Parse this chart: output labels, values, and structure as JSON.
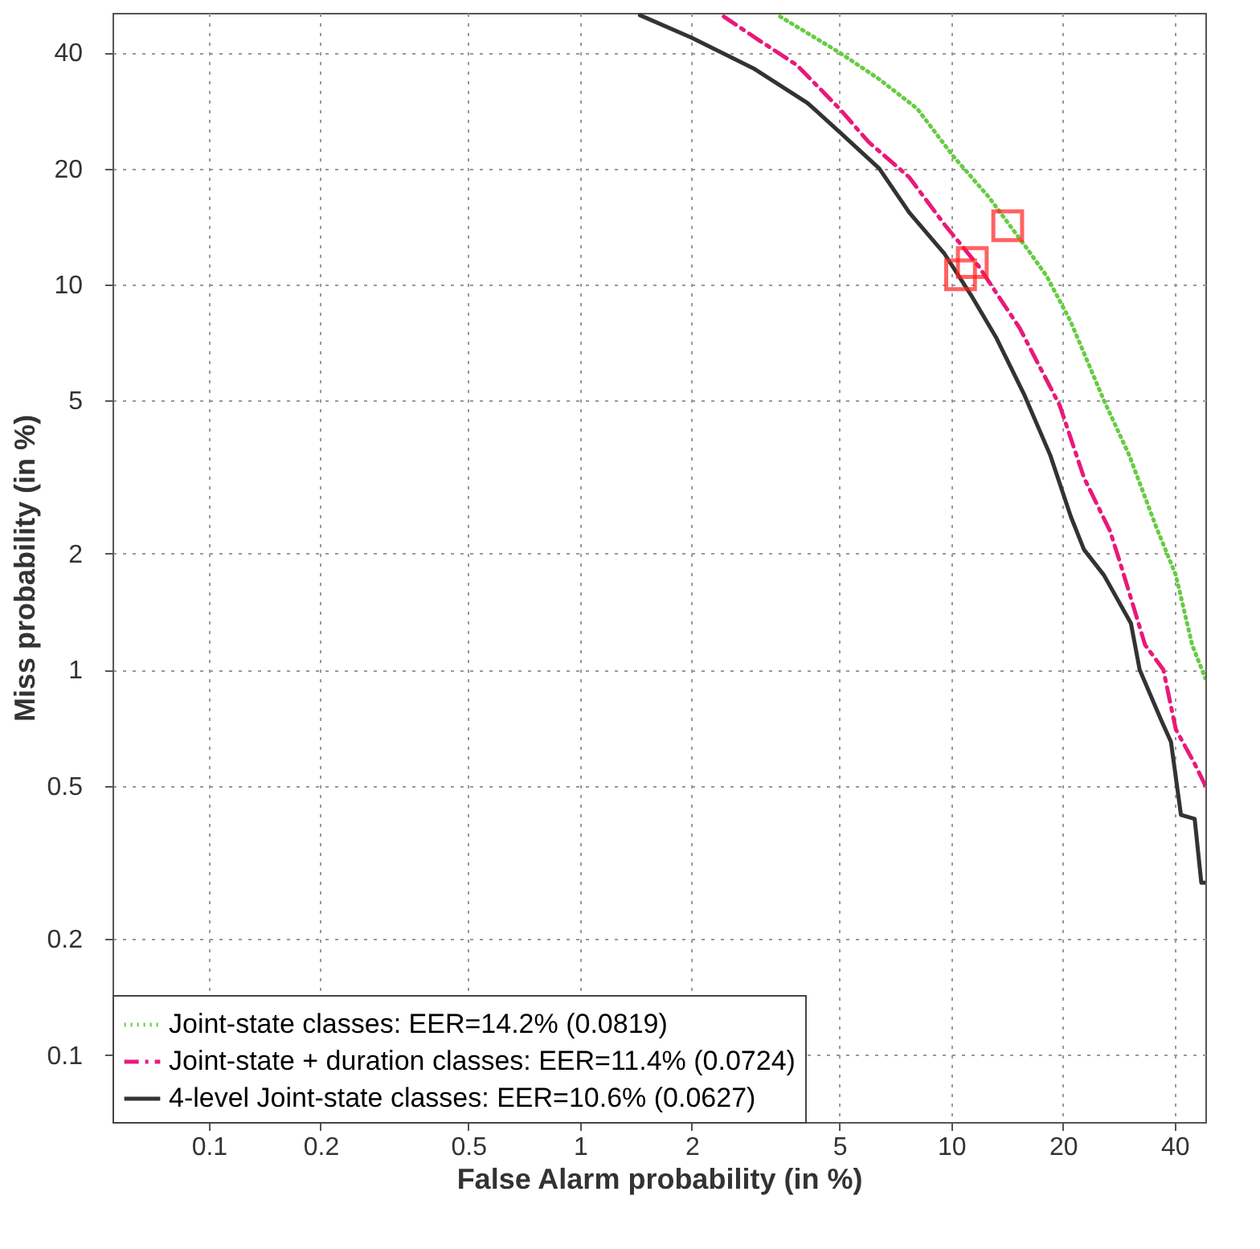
{
  "chart_data": {
    "type": "line",
    "xlabel": "False Alarm probability (in %)",
    "ylabel": "Miss probability (in %)",
    "log": "xy",
    "grid": true,
    "legend": "bottom left",
    "xlim": [
      0.055,
      48.4
    ],
    "ylim": [
      0.067,
      50.7
    ],
    "xticks": [
      0.1,
      0.2,
      0.5,
      1,
      2,
      5,
      10,
      20,
      40
    ],
    "yticks": [
      0.1,
      0.2,
      0.5,
      1,
      2,
      5,
      10,
      20,
      40
    ],
    "series": [
      {
        "name": "Joint-state classes: EER=14.2% (0.0819)",
        "color": "#66cc44",
        "line_style": "dotted",
        "x": [
          3.46,
          5,
          6.4,
          8.1,
          10.1,
          12.6,
          16.1,
          18.1,
          21,
          25.8,
          30.2,
          35.6,
          40.3,
          44.6,
          48.4
        ],
        "values": [
          49.6,
          40,
          34.1,
          28.6,
          21.6,
          16.9,
          12.3,
          10.5,
          8,
          5,
          3.6,
          2.36,
          1.76,
          1.16,
          0.95
        ]
      },
      {
        "name": "Joint-state + duration classes: EER=11.4% (0.0724)",
        "color": "#e8197a",
        "line_style": "dashed",
        "x": [
          2.44,
          3.03,
          3.84,
          5,
          6,
          7.7,
          9.6,
          11.9,
          15.3,
          19.6,
          22.8,
          26.8,
          28.9,
          33.3,
          37.3,
          40.3,
          45.3,
          48.4
        ],
        "values": [
          49.6,
          43.1,
          37.1,
          28.6,
          23.4,
          19,
          14.3,
          11.1,
          7.7,
          4.86,
          3.15,
          2.29,
          1.82,
          1.16,
          1.0,
          0.7,
          0.57,
          0.5
        ]
      },
      {
        "name": "4-level Joint-state classes: EER=10.6% (0.0627)",
        "color": "#333333",
        "line_style": "solid",
        "x": [
          1.45,
          2,
          2.93,
          4.1,
          5,
          6.4,
          7.7,
          9.6,
          11.3,
          13.2,
          15.7,
          18.5,
          21,
          22.8,
          25.8,
          30.5,
          32.2,
          36.8,
          39.1,
          41.6,
          45.3,
          47.2,
          48.4
        ],
        "values": [
          50,
          43.7,
          36.4,
          29.6,
          24.9,
          20,
          15.4,
          12,
          9.4,
          7.3,
          5.2,
          3.6,
          2.5,
          2.05,
          1.76,
          1.32,
          1.0,
          0.74,
          0.65,
          0.42,
          0.41,
          0.28,
          0.28
        ]
      },
      {
        "type": "scatter",
        "marker": "square",
        "color": "#ff2020",
        "x": [
          14.2,
          11.4,
          10.6
        ],
        "values": [
          14.2,
          11.4,
          10.6
        ]
      }
    ]
  }
}
